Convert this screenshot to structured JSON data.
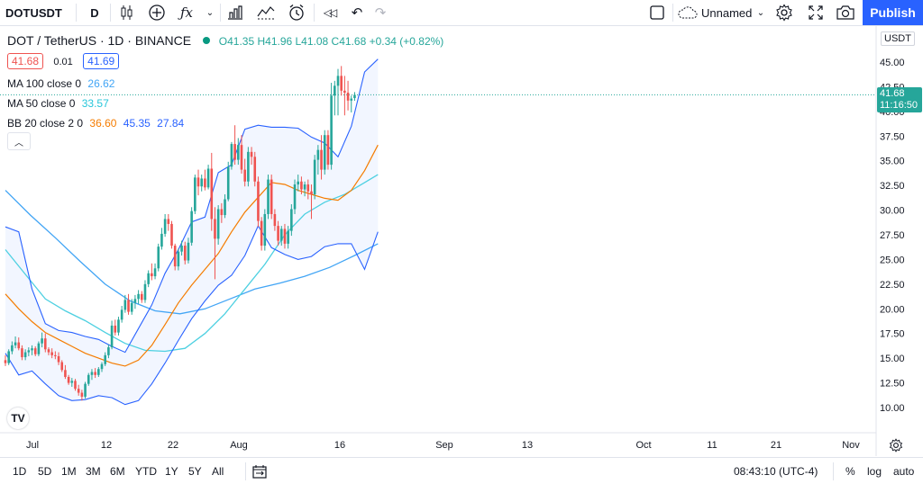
{
  "toolbar": {
    "symbol": "DOTUSDT",
    "interval": "D",
    "layout_name": "Unnamed",
    "publish_label": "Publish",
    "icons": [
      "candles-icon",
      "plus-circle-icon",
      "fx-icon",
      "chevron-down-icon",
      "bar-chart-icon",
      "indicator-icon",
      "alarm-icon",
      "replay-icon",
      "undo-icon",
      "redo-icon",
      "square-icon",
      "cloud-icon",
      "gear-icon",
      "fullscreen-icon",
      "camera-icon"
    ]
  },
  "legend": {
    "title": "DOT / TetherUS · 1D · BINANCE",
    "ohlc": "O41.35 H41.96 L41.08 C41.68 +0.34 (+0.82%)",
    "bid": "41.68",
    "spread": "0.01",
    "ask": "41.69",
    "ma100_label": "MA 100 close 0",
    "ma100_value": "26.62",
    "ma50_label": "MA 50 close 0",
    "ma50_value": "33.57",
    "bb_label": "BB 20 close 2 0",
    "bb_basis": "36.60",
    "bb_upper": "45.35",
    "bb_lower": "27.84"
  },
  "price_axis": {
    "currency": "USDT",
    "ticks": [
      "45.00",
      "42.50",
      "40.00",
      "37.50",
      "35.00",
      "32.50",
      "30.00",
      "27.50",
      "25.00",
      "22.50",
      "20.00",
      "17.50",
      "15.00",
      "12.50",
      "10.00"
    ],
    "last_price": "41.68",
    "countdown": "11:16:50"
  },
  "time_axis": {
    "labels": [
      "Jul",
      "12",
      "22",
      "Aug",
      "16",
      "Sep",
      "13",
      "Oct",
      "11",
      "21",
      "Nov"
    ]
  },
  "bottom": {
    "ranges": [
      "1D",
      "5D",
      "1M",
      "3M",
      "6M",
      "YTD",
      "1Y",
      "5Y",
      "All"
    ],
    "clock": "08:43:10 (UTC-4)",
    "percent": "%",
    "log": "log",
    "auto": "auto"
  },
  "colors": {
    "up": "#26a69a",
    "down": "#ef5350",
    "ma100": "#42a5f5",
    "ma50": "#4dd0e1",
    "bb_basis": "#f57c00",
    "bb_band": "#2962ff",
    "accent": "#2962ff"
  },
  "chart_data": {
    "type": "candlestick",
    "ylim": [
      8.5,
      47
    ],
    "candles": [
      [
        14.8,
        15.3,
        14.2,
        14.5
      ],
      [
        14.5,
        15.9,
        14.3,
        15.7
      ],
      [
        15.7,
        16.7,
        15.4,
        16.3
      ],
      [
        16.3,
        17.2,
        16.0,
        16.6
      ],
      [
        16.6,
        17.1,
        15.8,
        16.0
      ],
      [
        16.0,
        16.3,
        14.8,
        15.1
      ],
      [
        15.1,
        15.9,
        14.8,
        15.6
      ],
      [
        15.6,
        16.1,
        15.2,
        15.8
      ],
      [
        15.8,
        16.3,
        15.3,
        16.0
      ],
      [
        16.0,
        16.2,
        15.2,
        15.4
      ],
      [
        15.4,
        16.7,
        15.2,
        16.5
      ],
      [
        16.5,
        17.6,
        16.1,
        17.0
      ],
      [
        17.0,
        17.5,
        15.6,
        15.9
      ],
      [
        15.9,
        16.1,
        15.3,
        15.6
      ],
      [
        15.6,
        16.0,
        15.0,
        15.3
      ],
      [
        15.3,
        15.7,
        14.9,
        15.2
      ],
      [
        15.2,
        15.6,
        14.3,
        14.6
      ],
      [
        14.6,
        14.8,
        13.6,
        13.8
      ],
      [
        13.8,
        14.3,
        12.9,
        13.1
      ],
      [
        13.1,
        13.3,
        12.3,
        12.5
      ],
      [
        12.5,
        13.0,
        12.1,
        12.7
      ],
      [
        12.7,
        12.9,
        11.7,
        11.9
      ],
      [
        11.9,
        12.3,
        11.2,
        11.5
      ],
      [
        11.5,
        11.8,
        10.7,
        11.1
      ],
      [
        11.1,
        12.6,
        10.9,
        12.4
      ],
      [
        12.4,
        13.5,
        12.2,
        13.3
      ],
      [
        13.3,
        13.9,
        12.8,
        13.6
      ],
      [
        13.6,
        14.0,
        13.0,
        13.3
      ],
      [
        13.3,
        14.1,
        13.1,
        13.9
      ],
      [
        13.9,
        14.6,
        13.6,
        14.4
      ],
      [
        14.4,
        15.6,
        14.2,
        15.3
      ],
      [
        15.3,
        16.4,
        15.0,
        16.1
      ],
      [
        16.1,
        18.8,
        15.9,
        18.3
      ],
      [
        18.3,
        18.9,
        17.3,
        17.6
      ],
      [
        17.6,
        19.2,
        17.3,
        18.9
      ],
      [
        18.9,
        20.3,
        18.6,
        19.9
      ],
      [
        19.9,
        21.4,
        19.6,
        20.9
      ],
      [
        20.9,
        21.5,
        19.4,
        19.7
      ],
      [
        19.7,
        21.0,
        19.4,
        20.6
      ],
      [
        20.6,
        21.4,
        20.0,
        21.0
      ],
      [
        21.0,
        21.9,
        20.5,
        21.5
      ],
      [
        21.5,
        21.8,
        20.6,
        20.9
      ],
      [
        20.9,
        22.9,
        20.6,
        22.5
      ],
      [
        22.5,
        23.9,
        22.2,
        23.6
      ],
      [
        23.6,
        24.6,
        22.9,
        23.3
      ],
      [
        23.3,
        24.6,
        23.0,
        24.1
      ],
      [
        24.1,
        26.6,
        23.8,
        26.3
      ],
      [
        26.3,
        28.2,
        26.0,
        27.6
      ],
      [
        27.6,
        29.6,
        27.3,
        29.1
      ],
      [
        29.1,
        29.6,
        27.9,
        28.6
      ],
      [
        28.6,
        28.9,
        26.1,
        26.4
      ],
      [
        26.4,
        26.6,
        23.9,
        24.3
      ],
      [
        24.3,
        26.1,
        23.9,
        25.8
      ],
      [
        25.8,
        26.9,
        25.4,
        26.4
      ],
      [
        26.4,
        26.8,
        24.5,
        24.9
      ],
      [
        24.9,
        27.2,
        24.6,
        26.7
      ],
      [
        26.7,
        30.3,
        26.4,
        29.9
      ],
      [
        29.9,
        33.6,
        29.6,
        33.3
      ],
      [
        33.3,
        34.1,
        31.5,
        32.4
      ],
      [
        32.4,
        33.6,
        31.9,
        33.2
      ],
      [
        33.2,
        34.1,
        32.0,
        32.3
      ],
      [
        32.3,
        34.6,
        32.1,
        34.2
      ],
      [
        34.2,
        35.8,
        27.9,
        29.1
      ],
      [
        29.1,
        30.3,
        23.0,
        27.1
      ],
      [
        27.1,
        30.5,
        26.5,
        30.1
      ],
      [
        30.1,
        30.7,
        28.7,
        29.5
      ],
      [
        29.5,
        31.6,
        29.2,
        31.1
      ],
      [
        31.1,
        34.9,
        30.9,
        34.4
      ],
      [
        34.4,
        36.9,
        34.1,
        36.7
      ],
      [
        36.7,
        38.6,
        34.6,
        35.1
      ],
      [
        35.1,
        37.3,
        34.6,
        36.6
      ],
      [
        36.6,
        37.6,
        33.7,
        34.1
      ],
      [
        34.1,
        35.2,
        32.4,
        32.9
      ],
      [
        32.9,
        36.4,
        32.4,
        35.9
      ],
      [
        35.9,
        36.4,
        34.6,
        35.4
      ],
      [
        35.4,
        35.9,
        32.4,
        32.9
      ],
      [
        32.9,
        33.4,
        28.3,
        28.9
      ],
      [
        28.9,
        29.3,
        25.9,
        26.4
      ],
      [
        26.4,
        30.1,
        25.9,
        29.6
      ],
      [
        29.6,
        33.6,
        29.1,
        33.1
      ],
      [
        33.1,
        33.6,
        29.1,
        29.6
      ],
      [
        29.6,
        30.1,
        27.9,
        28.4
      ],
      [
        28.4,
        28.9,
        26.4,
        26.9
      ],
      [
        26.9,
        28.4,
        26.4,
        28.1
      ],
      [
        28.1,
        28.6,
        26.1,
        26.6
      ],
      [
        26.6,
        28.4,
        26.1,
        27.9
      ],
      [
        27.9,
        30.6,
        27.4,
        30.1
      ],
      [
        30.1,
        33.1,
        29.6,
        32.6
      ],
      [
        32.6,
        33.6,
        31.9,
        32.9
      ],
      [
        32.9,
        33.4,
        31.6,
        32.1
      ],
      [
        32.1,
        32.9,
        31.4,
        32.6
      ],
      [
        32.6,
        33.1,
        31.1,
        31.9
      ],
      [
        31.9,
        32.6,
        29.1,
        31.6
      ],
      [
        31.6,
        35.6,
        31.1,
        35.1
      ],
      [
        35.1,
        36.6,
        33.6,
        36.1
      ],
      [
        36.1,
        37.6,
        33.1,
        34.1
      ],
      [
        34.1,
        38.1,
        33.6,
        37.6
      ],
      [
        37.6,
        38.1,
        34.1,
        34.6
      ],
      [
        34.6,
        42.9,
        34.1,
        41.6
      ],
      [
        41.6,
        43.1,
        39.6,
        42.6
      ],
      [
        42.6,
        44.3,
        39.6,
        43.6
      ],
      [
        43.6,
        44.6,
        41.6,
        42.1
      ],
      [
        42.1,
        43.6,
        39.6,
        41.9
      ],
      [
        41.9,
        43.1,
        40.1,
        41.1
      ],
      [
        41.1,
        41.6,
        39.9,
        41.3
      ],
      [
        41.35,
        41.96,
        41.08,
        41.68
      ]
    ],
    "series": [
      {
        "key": "ma100",
        "values": [
          [
            0,
            32.0
          ],
          [
            15,
            29.5
          ],
          [
            30,
            27.2
          ],
          [
            45,
            24.8
          ],
          [
            60,
            22.5
          ],
          [
            75,
            20.8
          ],
          [
            90,
            19.8
          ],
          [
            105,
            19.5
          ],
          [
            120,
            20.0
          ],
          [
            135,
            21.0
          ],
          [
            150,
            22.0
          ],
          [
            165,
            22.6
          ],
          [
            180,
            23.3
          ],
          [
            195,
            24.2
          ],
          [
            210,
            25.4
          ],
          [
            224,
            26.6
          ]
        ]
      },
      {
        "key": "ma50",
        "values": [
          [
            0,
            26.0
          ],
          [
            12,
            23.5
          ],
          [
            24,
            21.0
          ],
          [
            36,
            19.8
          ],
          [
            48,
            18.8
          ],
          [
            60,
            17.6
          ],
          [
            72,
            16.5
          ],
          [
            84,
            15.8
          ],
          [
            96,
            15.7
          ],
          [
            108,
            16.0
          ],
          [
            120,
            17.5
          ],
          [
            132,
            19.5
          ],
          [
            144,
            22.0
          ],
          [
            156,
            24.5
          ],
          [
            168,
            27.5
          ],
          [
            180,
            29.6
          ],
          [
            192,
            30.8
          ],
          [
            204,
            31.6
          ],
          [
            216,
            32.8
          ],
          [
            224,
            33.6
          ]
        ]
      },
      {
        "key": "bb_basis",
        "values": [
          [
            0,
            21.5
          ],
          [
            8,
            20.0
          ],
          [
            16,
            18.7
          ],
          [
            24,
            17.6
          ],
          [
            32,
            16.9
          ],
          [
            40,
            16.2
          ],
          [
            48,
            15.5
          ],
          [
            56,
            15.0
          ],
          [
            64,
            14.5
          ],
          [
            72,
            14.2
          ],
          [
            80,
            14.8
          ],
          [
            88,
            16.3
          ],
          [
            96,
            18.4
          ],
          [
            104,
            20.6
          ],
          [
            112,
            22.4
          ],
          [
            120,
            24.0
          ],
          [
            128,
            25.6
          ],
          [
            136,
            27.8
          ],
          [
            144,
            29.8
          ],
          [
            152,
            31.3
          ],
          [
            160,
            32.8
          ],
          [
            168,
            32.6
          ],
          [
            176,
            32.0
          ],
          [
            184,
            31.6
          ],
          [
            192,
            31.2
          ],
          [
            200,
            31.0
          ],
          [
            208,
            32.0
          ],
          [
            216,
            34.0
          ],
          [
            224,
            36.6
          ]
        ]
      },
      {
        "key": "bb_upper",
        "values": [
          [
            0,
            28.3
          ],
          [
            8,
            27.8
          ],
          [
            16,
            22.0
          ],
          [
            24,
            18.5
          ],
          [
            32,
            17.8
          ],
          [
            40,
            17.6
          ],
          [
            48,
            17.2
          ],
          [
            56,
            16.9
          ],
          [
            64,
            16.2
          ],
          [
            72,
            15.6
          ],
          [
            80,
            18.0
          ],
          [
            88,
            20.4
          ],
          [
            96,
            23.6
          ],
          [
            104,
            26.0
          ],
          [
            112,
            28.8
          ],
          [
            120,
            29.3
          ],
          [
            128,
            33.8
          ],
          [
            136,
            34.6
          ],
          [
            144,
            38.2
          ],
          [
            152,
            38.6
          ],
          [
            160,
            38.4
          ],
          [
            168,
            38.4
          ],
          [
            176,
            38.3
          ],
          [
            184,
            37.4
          ],
          [
            192,
            36.8
          ],
          [
            200,
            35.4
          ],
          [
            208,
            38.5
          ],
          [
            216,
            44.0
          ],
          [
            224,
            45.3
          ]
        ]
      },
      {
        "key": "bb_lower",
        "values": [
          [
            0,
            15.5
          ],
          [
            8,
            13.3
          ],
          [
            16,
            13.7
          ],
          [
            24,
            12.4
          ],
          [
            32,
            11.2
          ],
          [
            40,
            10.7
          ],
          [
            48,
            10.8
          ],
          [
            56,
            11.2
          ],
          [
            64,
            11.0
          ],
          [
            72,
            10.3
          ],
          [
            80,
            10.7
          ],
          [
            88,
            12.4
          ],
          [
            96,
            14.5
          ],
          [
            104,
            16.8
          ],
          [
            112,
            19.0
          ],
          [
            120,
            20.8
          ],
          [
            128,
            22.4
          ],
          [
            136,
            23.4
          ],
          [
            144,
            25.4
          ],
          [
            152,
            28.4
          ],
          [
            160,
            26.2
          ],
          [
            168,
            25.5
          ],
          [
            176,
            25.0
          ],
          [
            184,
            25.3
          ],
          [
            192,
            26.3
          ],
          [
            200,
            26.6
          ],
          [
            208,
            26.6
          ],
          [
            216,
            24.0
          ],
          [
            224,
            27.8
          ]
        ]
      }
    ]
  }
}
